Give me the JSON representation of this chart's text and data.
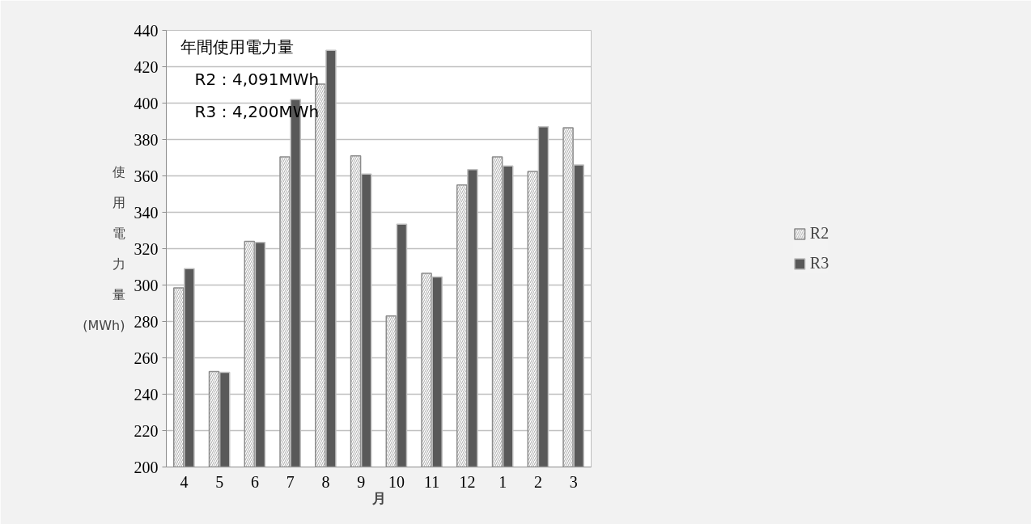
{
  "chart_data": {
    "type": "bar",
    "categories": [
      "4",
      "5",
      "6",
      "7",
      "8",
      "9",
      "10",
      "11",
      "12",
      "1",
      "2",
      "3"
    ],
    "series": [
      {
        "name": "R2",
        "color": "#ffffff",
        "values": [
          298.5,
          252.5,
          324,
          370.5,
          410.5,
          371,
          283,
          306.5,
          355,
          370.5,
          362.5,
          386.5
        ]
      },
      {
        "name": "R3",
        "color": "#595959",
        "values": [
          309,
          252,
          323.5,
          402,
          429,
          361,
          333.5,
          304.5,
          363.5,
          365.5,
          387,
          366
        ]
      }
    ],
    "xlabel": "月",
    "ylabel": "使用電力量(MWh)",
    "ylim": [
      200,
      440
    ],
    "yticks": [
      200,
      220,
      240,
      260,
      280,
      300,
      320,
      340,
      360,
      380,
      400,
      420,
      440
    ],
    "grid": "y",
    "legend": "right",
    "annotations": [
      "年間使用電力量",
      "R2：4,091MWh",
      "R3：4,200MWh"
    ]
  }
}
